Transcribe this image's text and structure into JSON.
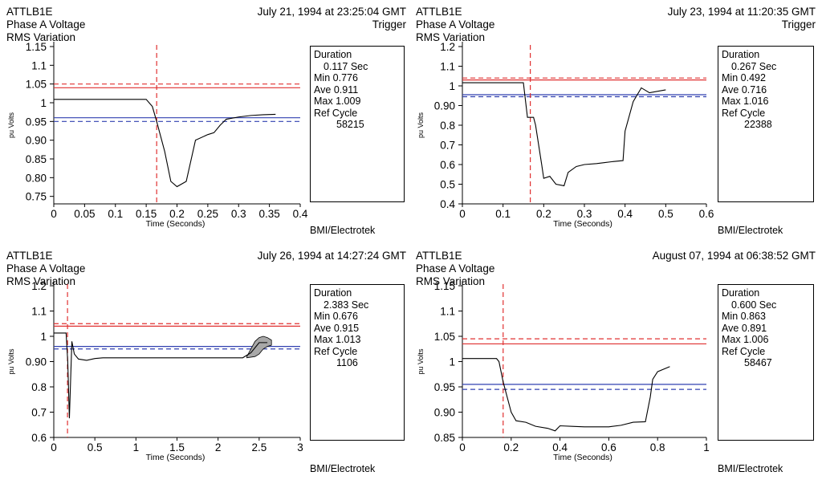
{
  "credit": "BMI/Electrotek",
  "xlabel": "Time (Seconds)",
  "ylabel": "pu Volts",
  "colors": {
    "red_ref": "#e03030",
    "blue_ref": "#3040b0",
    "black": "#000000",
    "envelope": "#a8a8a8"
  },
  "chart_data": [
    {
      "type": "line",
      "site": "ATTLB1E",
      "title_line2": "Phase A Voltage",
      "title_line3": "RMS Variation",
      "timestamp": "July 21, 1994 at 23:25:04 GMT",
      "trigger": "Trigger",
      "xlim": [
        0,
        0.4
      ],
      "xticks": [
        0,
        0.05,
        0.1,
        0.15,
        0.2,
        0.25,
        0.3,
        0.35,
        0.4
      ],
      "xtick_labels": [
        "0",
        "0.05",
        "0.1",
        "0.15",
        "0.2",
        "0.25",
        "0.3",
        "0.35",
        "0.4"
      ],
      "ylim": [
        0.73,
        1.15
      ],
      "yticks": [
        0.75,
        0.8,
        0.85,
        0.9,
        0.95,
        1,
        1.05,
        1.1,
        1.15
      ],
      "ytick_labels": [
        "0.75",
        "0.80",
        "0.85",
        "0.90",
        "0.95",
        "1",
        "1.05",
        "1.1",
        "1.15"
      ],
      "trigger_time": 0.167,
      "ref_lines": [
        {
          "y": 1.05,
          "color": "red",
          "style": "dashed"
        },
        {
          "y": 1.04,
          "color": "red",
          "style": "solid"
        },
        {
          "y": 0.96,
          "color": "blue",
          "style": "solid"
        },
        {
          "y": 0.95,
          "color": "blue",
          "style": "dashed"
        }
      ],
      "series": [
        {
          "x": [
            0,
            0.15,
            0.16,
            0.167,
            0.18,
            0.19,
            0.2,
            0.215,
            0.23,
            0.25,
            0.26,
            0.27,
            0.28,
            0.3,
            0.32,
            0.34,
            0.36
          ],
          "y": [
            1.009,
            1.009,
            0.99,
            0.95,
            0.87,
            0.79,
            0.776,
            0.79,
            0.9,
            0.915,
            0.92,
            0.94,
            0.956,
            0.962,
            0.966,
            0.968,
            0.969
          ]
        }
      ],
      "info": {
        "duration_label": "Duration",
        "duration_value": "0.117 Sec",
        "min_label": "Min",
        "min": "0.776",
        "ave_label": "Ave",
        "ave": "0.911",
        "max_label": "Max",
        "max": "1.009",
        "ref_label": "Ref Cycle",
        "ref_value": "58215"
      }
    },
    {
      "type": "line",
      "site": "ATTLB1E",
      "title_line2": "Phase A Voltage",
      "title_line3": "RMS Variation",
      "timestamp": "July 23, 1994 at 11:20:35 GMT",
      "trigger": "Trigger",
      "xlim": [
        0,
        0.6
      ],
      "xticks": [
        0,
        0.1,
        0.2,
        0.3,
        0.4,
        0.5,
        0.6
      ],
      "xtick_labels": [
        "0",
        "0.1",
        "0.2",
        "0.3",
        "0.4",
        "0.5",
        "0.6"
      ],
      "ylim": [
        0.4,
        1.2
      ],
      "yticks": [
        0.4,
        0.5,
        0.6,
        0.7,
        0.8,
        0.9,
        1,
        1.1,
        1.2
      ],
      "ytick_labels": [
        "0.4",
        "0.5",
        "0.6",
        "0.7",
        "0.8",
        "0.90",
        "1",
        "1.1",
        "1.2"
      ],
      "trigger_time": 0.167,
      "ref_lines": [
        {
          "y": 1.04,
          "color": "red",
          "style": "dashed"
        },
        {
          "y": 1.03,
          "color": "red",
          "style": "solid"
        },
        {
          "y": 0.955,
          "color": "blue",
          "style": "solid"
        },
        {
          "y": 0.945,
          "color": "blue",
          "style": "dashed"
        }
      ],
      "series": [
        {
          "x": [
            0,
            0.15,
            0.16,
            0.175,
            0.18,
            0.195,
            0.2,
            0.215,
            0.23,
            0.25,
            0.26,
            0.28,
            0.3,
            0.33,
            0.35,
            0.37,
            0.395,
            0.4,
            0.42,
            0.44,
            0.46,
            0.5
          ],
          "y": [
            1.016,
            1.016,
            0.84,
            0.84,
            0.8,
            0.6,
            0.53,
            0.54,
            0.5,
            0.492,
            0.56,
            0.59,
            0.6,
            0.605,
            0.61,
            0.615,
            0.62,
            0.77,
            0.92,
            0.99,
            0.965,
            0.98
          ]
        }
      ],
      "info": {
        "duration_label": "Duration",
        "duration_value": "0.267 Sec",
        "min_label": "Min",
        "min": "0.492",
        "ave_label": "Ave",
        "ave": "0.716",
        "max_label": "Max",
        "max": "1.016",
        "ref_label": "Ref Cycle",
        "ref_value": "22388"
      }
    },
    {
      "type": "line",
      "site": "ATTLB1E",
      "title_line2": "Phase A Voltage",
      "title_line3": "RMS Variation",
      "timestamp": "July 26, 1994 at 14:27:24 GMT",
      "trigger": "",
      "xlim": [
        0,
        3
      ],
      "xticks": [
        0,
        0.5,
        1,
        1.5,
        2,
        2.5,
        3
      ],
      "xtick_labels": [
        "0",
        "0.5",
        "1",
        "1.5",
        "2",
        "2.5",
        "3"
      ],
      "ylim": [
        0.6,
        1.2
      ],
      "yticks": [
        0.6,
        0.7,
        0.8,
        0.9,
        1,
        1.1,
        1.2
      ],
      "ytick_labels": [
        "0.6",
        "0.7",
        "0.8",
        "0.90",
        "1",
        "1.1",
        "1.2"
      ],
      "trigger_time": 0.167,
      "ref_lines": [
        {
          "y": 1.05,
          "color": "red",
          "style": "dashed"
        },
        {
          "y": 1.04,
          "color": "red",
          "style": "solid"
        },
        {
          "y": 0.96,
          "color": "blue",
          "style": "solid"
        },
        {
          "y": 0.95,
          "color": "blue",
          "style": "dashed"
        }
      ],
      "series": [
        {
          "x": [
            0,
            0.15,
            0.17,
            0.19,
            0.22,
            0.25,
            0.3,
            0.4,
            0.5,
            0.6,
            1.0,
            1.5,
            2.0,
            2.3,
            2.4,
            2.5,
            2.6
          ],
          "y": [
            1.013,
            1.013,
            0.9,
            0.676,
            0.98,
            0.93,
            0.91,
            0.905,
            0.912,
            0.915,
            0.915,
            0.915,
            0.915,
            0.915,
            0.935,
            0.975,
            0.975
          ]
        }
      ],
      "envelope": {
        "x": [
          2.35,
          2.45,
          2.5,
          2.55,
          2.6,
          2.65
        ],
        "upper": [
          0.92,
          0.98,
          0.995,
          1.0,
          0.995,
          0.985
        ],
        "lower": [
          0.915,
          0.92,
          0.93,
          0.95,
          0.96,
          0.965
        ]
      },
      "info": {
        "duration_label": "Duration",
        "duration_value": "2.383 Sec",
        "min_label": "Min",
        "min": "0.676",
        "ave_label": "Ave",
        "ave": "0.915",
        "max_label": "Max",
        "max": "1.013",
        "ref_label": "Ref Cycle",
        "ref_value": "1106"
      }
    },
    {
      "type": "line",
      "site": "ATTLB1E",
      "title_line2": "Phase A Voltage",
      "title_line3": "RMS Variation",
      "timestamp": "August 07, 1994 at 06:38:52 GMT",
      "trigger": "",
      "xlim": [
        0,
        1
      ],
      "xticks": [
        0,
        0.2,
        0.4,
        0.6,
        0.8,
        1
      ],
      "xtick_labels": [
        "0",
        "0.2",
        "0.4",
        "0.6",
        "0.8",
        "1"
      ],
      "ylim": [
        0.85,
        1.15
      ],
      "yticks": [
        0.85,
        0.9,
        0.95,
        1,
        1.05,
        1.1,
        1.15
      ],
      "ytick_labels": [
        "0.85",
        "0.90",
        "0.95",
        "1",
        "1.05",
        "1.1",
        "1.15"
      ],
      "trigger_time": 0.167,
      "ref_lines": [
        {
          "y": 1.045,
          "color": "red",
          "style": "dashed"
        },
        {
          "y": 1.035,
          "color": "red",
          "style": "solid"
        },
        {
          "y": 0.955,
          "color": "blue",
          "style": "solid"
        },
        {
          "y": 0.945,
          "color": "blue",
          "style": "dashed"
        }
      ],
      "series": [
        {
          "x": [
            0,
            0.14,
            0.15,
            0.167,
            0.2,
            0.22,
            0.26,
            0.3,
            0.35,
            0.38,
            0.4,
            0.45,
            0.5,
            0.6,
            0.65,
            0.7,
            0.75,
            0.77,
            0.78,
            0.8,
            0.85
          ],
          "y": [
            1.006,
            1.006,
            1.0,
            0.96,
            0.9,
            0.883,
            0.88,
            0.872,
            0.868,
            0.863,
            0.873,
            0.872,
            0.871,
            0.871,
            0.874,
            0.88,
            0.881,
            0.93,
            0.965,
            0.98,
            0.99
          ]
        }
      ],
      "info": {
        "duration_label": "Duration",
        "duration_value": "0.600 Sec",
        "min_label": "Min",
        "min": "0.863",
        "ave_label": "Ave",
        "ave": "0.891",
        "max_label": "Max",
        "max": "1.006",
        "ref_label": "Ref Cycle",
        "ref_value": "58467"
      }
    }
  ]
}
